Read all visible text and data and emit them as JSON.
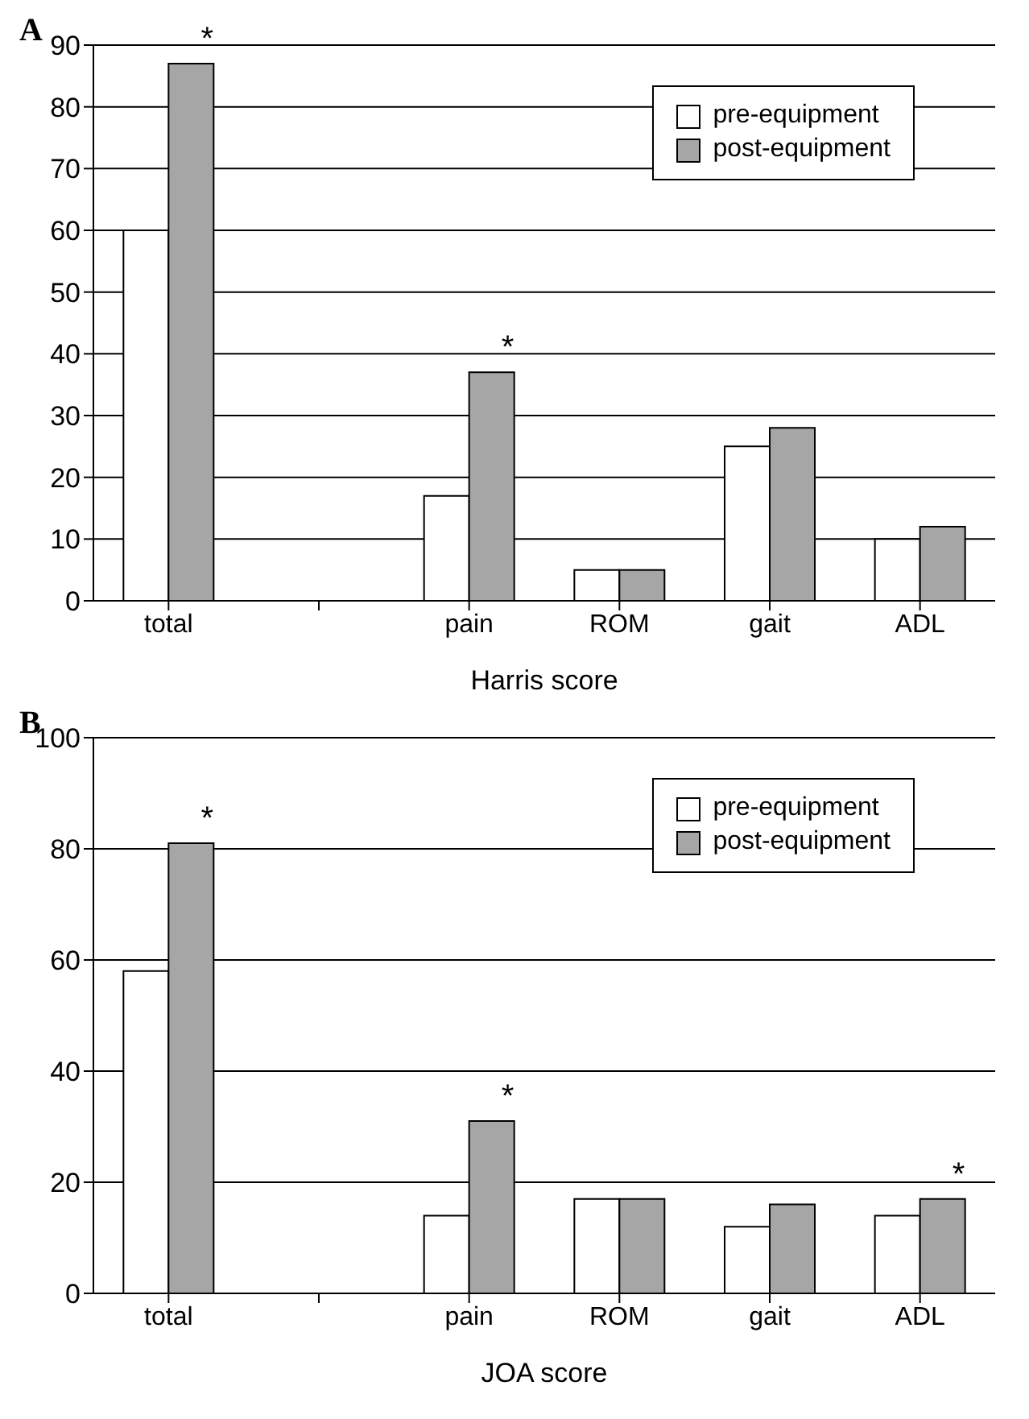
{
  "chart_data": [
    {
      "type": "bar",
      "title": "A",
      "xlabel": "Harris score",
      "categories": [
        "total",
        null,
        "pain",
        "ROM",
        "gait",
        "ADL"
      ],
      "series": [
        {
          "name": "pre-equipment",
          "color": "#ffffff",
          "values": [
            60,
            null,
            17,
            5,
            25,
            10
          ]
        },
        {
          "name": "post-equipment",
          "color": "#a6a6a6",
          "values": [
            87,
            null,
            37,
            5,
            28,
            12
          ]
        }
      ],
      "ylim": [
        0,
        90
      ],
      "yticks": [
        0,
        10,
        20,
        30,
        40,
        50,
        60,
        70,
        80,
        90
      ],
      "grid": "y",
      "legend": "top right",
      "annotations": [
        {
          "text": "*",
          "x": "total",
          "y": 87
        },
        {
          "text": "*",
          "x": "pain",
          "y": 37
        }
      ]
    },
    {
      "type": "bar",
      "title": "B",
      "xlabel": "JOA score",
      "categories": [
        "total",
        null,
        "pain",
        "ROM",
        "gait",
        "ADL"
      ],
      "series": [
        {
          "name": "pre-equipment",
          "color": "#ffffff",
          "values": [
            58,
            null,
            14,
            17,
            12,
            14
          ]
        },
        {
          "name": "post-equipment",
          "color": "#a6a6a6",
          "values": [
            81,
            null,
            31,
            17,
            16,
            17
          ]
        }
      ],
      "ylim": [
        0,
        100
      ],
      "yticks": [
        0,
        20,
        40,
        60,
        80,
        100
      ],
      "grid": "y",
      "legend": "top right",
      "annotations": [
        {
          "text": "*",
          "x": "total",
          "y": 81
        },
        {
          "text": "*",
          "x": "pain",
          "y": 31
        },
        {
          "text": "*",
          "x": "ADL",
          "y": 17
        }
      ]
    }
  ]
}
